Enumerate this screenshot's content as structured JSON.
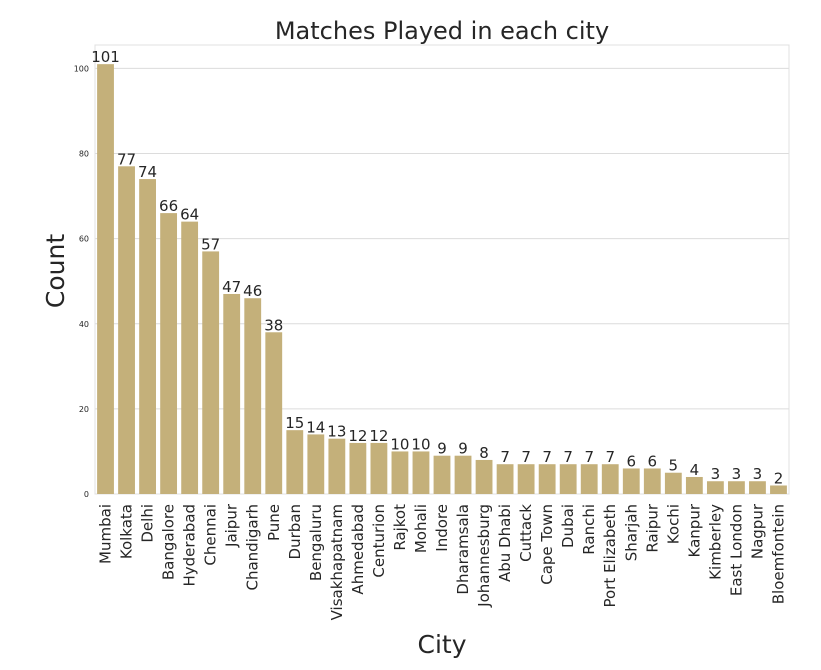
{
  "chart_data": {
    "type": "bar",
    "title": "Matches Played in each city",
    "xlabel": "City",
    "ylabel": "Count",
    "categories": [
      "Mumbai",
      "Kolkata",
      "Delhi",
      "Bangalore",
      "Hyderabad",
      "Chennai",
      "Jaipur",
      "Chandigarh",
      "Pune",
      "Durban",
      "Bengaluru",
      "Visakhapatnam",
      "Ahmedabad",
      "Centurion",
      "Rajkot",
      "Mohali",
      "Indore",
      "Dharamsala",
      "Johannesburg",
      "Abu Dhabi",
      "Cuttack",
      "Cape Town",
      "Dubai",
      "Ranchi",
      "Port Elizabeth",
      "Sharjah",
      "Raipur",
      "Kochi",
      "Kanpur",
      "Kimberley",
      "East London",
      "Nagpur",
      "Bloemfontein"
    ],
    "values": [
      101,
      77,
      74,
      66,
      64,
      57,
      47,
      46,
      38,
      15,
      14,
      13,
      12,
      12,
      10,
      10,
      9,
      9,
      8,
      7,
      7,
      7,
      7,
      7,
      7,
      6,
      6,
      5,
      4,
      3,
      3,
      3,
      2
    ],
    "yticks": [
      "0",
      "20",
      "40",
      "60",
      "80",
      "100"
    ],
    "ylim": [
      0,
      105.5
    ],
    "bar_color": "#c4b07a",
    "grid": true,
    "data_labels": true
  }
}
